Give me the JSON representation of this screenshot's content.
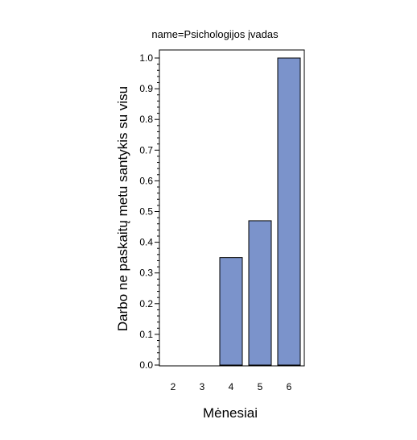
{
  "chart_data": {
    "type": "bar",
    "title": "name=Psichologijos įvadas",
    "xlabel": "Mėnesiai",
    "ylabel": "Darbo ne paskaitų metu santykis su visu",
    "categories": [
      "2",
      "3",
      "4",
      "5",
      "6"
    ],
    "values": [
      0.0,
      0.0,
      0.35,
      0.47,
      1.0
    ],
    "ylim": [
      0.0,
      1.0
    ],
    "yticks": [
      "0.0",
      "0.1",
      "0.2",
      "0.3",
      "0.4",
      "0.5",
      "0.6",
      "0.7",
      "0.8",
      "0.9",
      "1.0"
    ],
    "grid": false,
    "legend": "none",
    "bar_color": "#7b93cb"
  }
}
